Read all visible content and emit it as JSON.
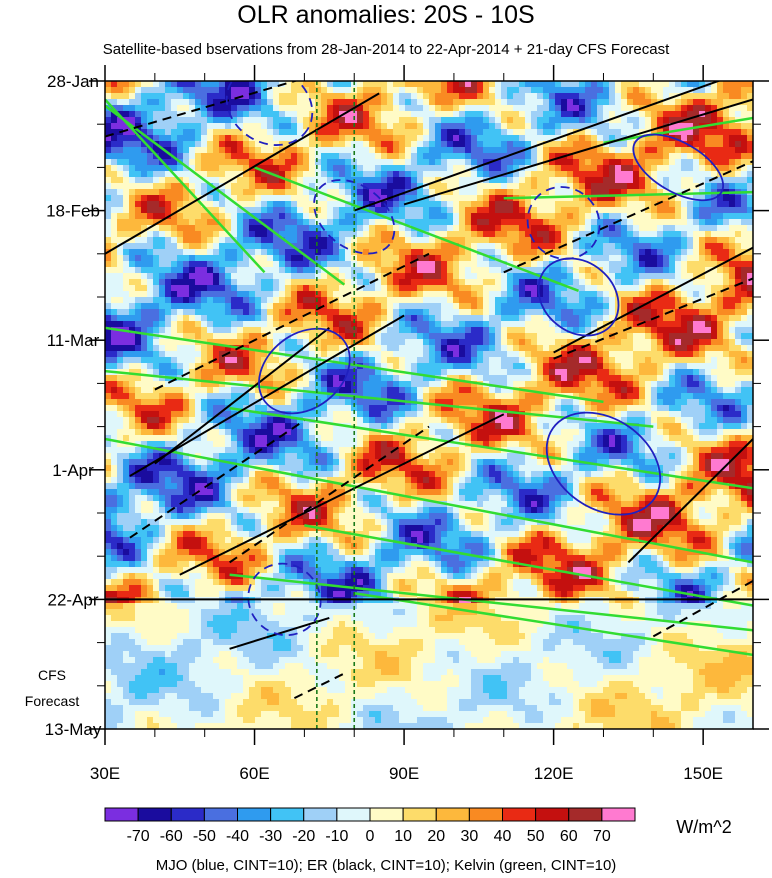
{
  "chart_data": {
    "type": "heatmap",
    "title": "OLR anomalies: 20S - 10S",
    "subtitle": "Satellite-based bservations from 28-Jan-2014 to 22-Apr-2014 + 21-day CFS Forecast",
    "x_axis": {
      "range": [
        30,
        160
      ],
      "tick_values": [
        30,
        60,
        90,
        120,
        150
      ],
      "tick_labels": [
        "30E",
        "60E",
        "90E",
        "120E",
        "150E"
      ]
    },
    "y_axis": {
      "range": [
        "28-Jan",
        "13-May"
      ],
      "tick_labels": [
        "28-Jan",
        "18-Feb",
        "11-Mar",
        "1-Apr",
        "22-Apr",
        "13-May"
      ],
      "tick_day_offsets": [
        0,
        21,
        42,
        63,
        84,
        105
      ],
      "forecast_start": "22-Apr"
    },
    "forecast_label": [
      "CFS",
      "Forecast"
    ],
    "reference_lines_lon": [
      72.5,
      80
    ],
    "colorbar": {
      "unit": "W/m^2",
      "labels": [
        "-70",
        "-60",
        "-50",
        "-40",
        "-30",
        "-20",
        "-10",
        "0",
        "10",
        "20",
        "30",
        "40",
        "50",
        "60",
        "70"
      ],
      "colors": [
        "#7b2ee0",
        "#1a0c9e",
        "#2b2bc8",
        "#4a6fe0",
        "#2f9bef",
        "#41c3f5",
        "#9fd0f7",
        "#dff7fb",
        "#fffbc6",
        "#fddc6a",
        "#fdb83c",
        "#f98a22",
        "#e92a14",
        "#c4100f",
        "#a52a2a",
        "#ff7ad0"
      ]
    },
    "contours_legend": "MJO (blue, CINT=10); ER (black, CINT=10); Kelvin (green, CINT=10)",
    "series_colors": {
      "mjo": "#2020c0",
      "er": "#000000",
      "kelvin": "#32dc32"
    }
  }
}
